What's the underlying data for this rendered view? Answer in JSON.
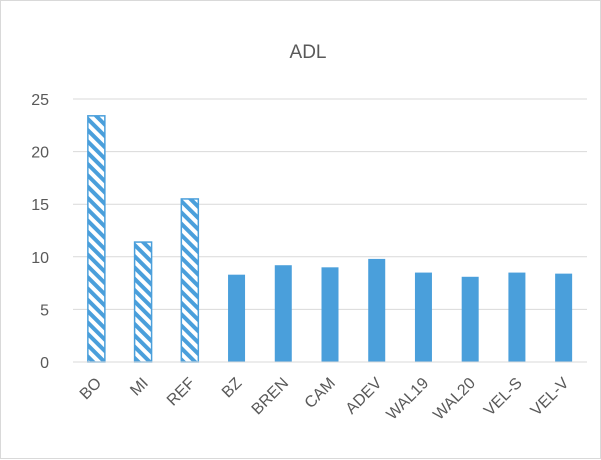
{
  "chart_data": {
    "type": "bar",
    "title": "ADL",
    "xlabel": "",
    "ylabel": "",
    "ylim": [
      0,
      25
    ],
    "yticks": [
      0,
      5,
      10,
      15,
      20,
      25
    ],
    "grid": true,
    "legend": "none",
    "categories": [
      "BO",
      "MI",
      "REF",
      "BZ",
      "BREN",
      "CAM",
      "ADEV",
      "WAL19",
      "WAL20",
      "VEL-S",
      "VEL-V"
    ],
    "values": [
      23.4,
      11.4,
      15.5,
      8.3,
      9.2,
      9.0,
      9.8,
      8.5,
      8.1,
      8.5,
      8.4
    ],
    "patterns": [
      "hatched",
      "hatched",
      "hatched",
      "solid",
      "solid",
      "solid",
      "solid",
      "solid",
      "solid",
      "solid",
      "solid"
    ],
    "colors": {
      "bar": "#4a9fdb",
      "grid": "#d9d9d9",
      "text": "#595959"
    }
  }
}
